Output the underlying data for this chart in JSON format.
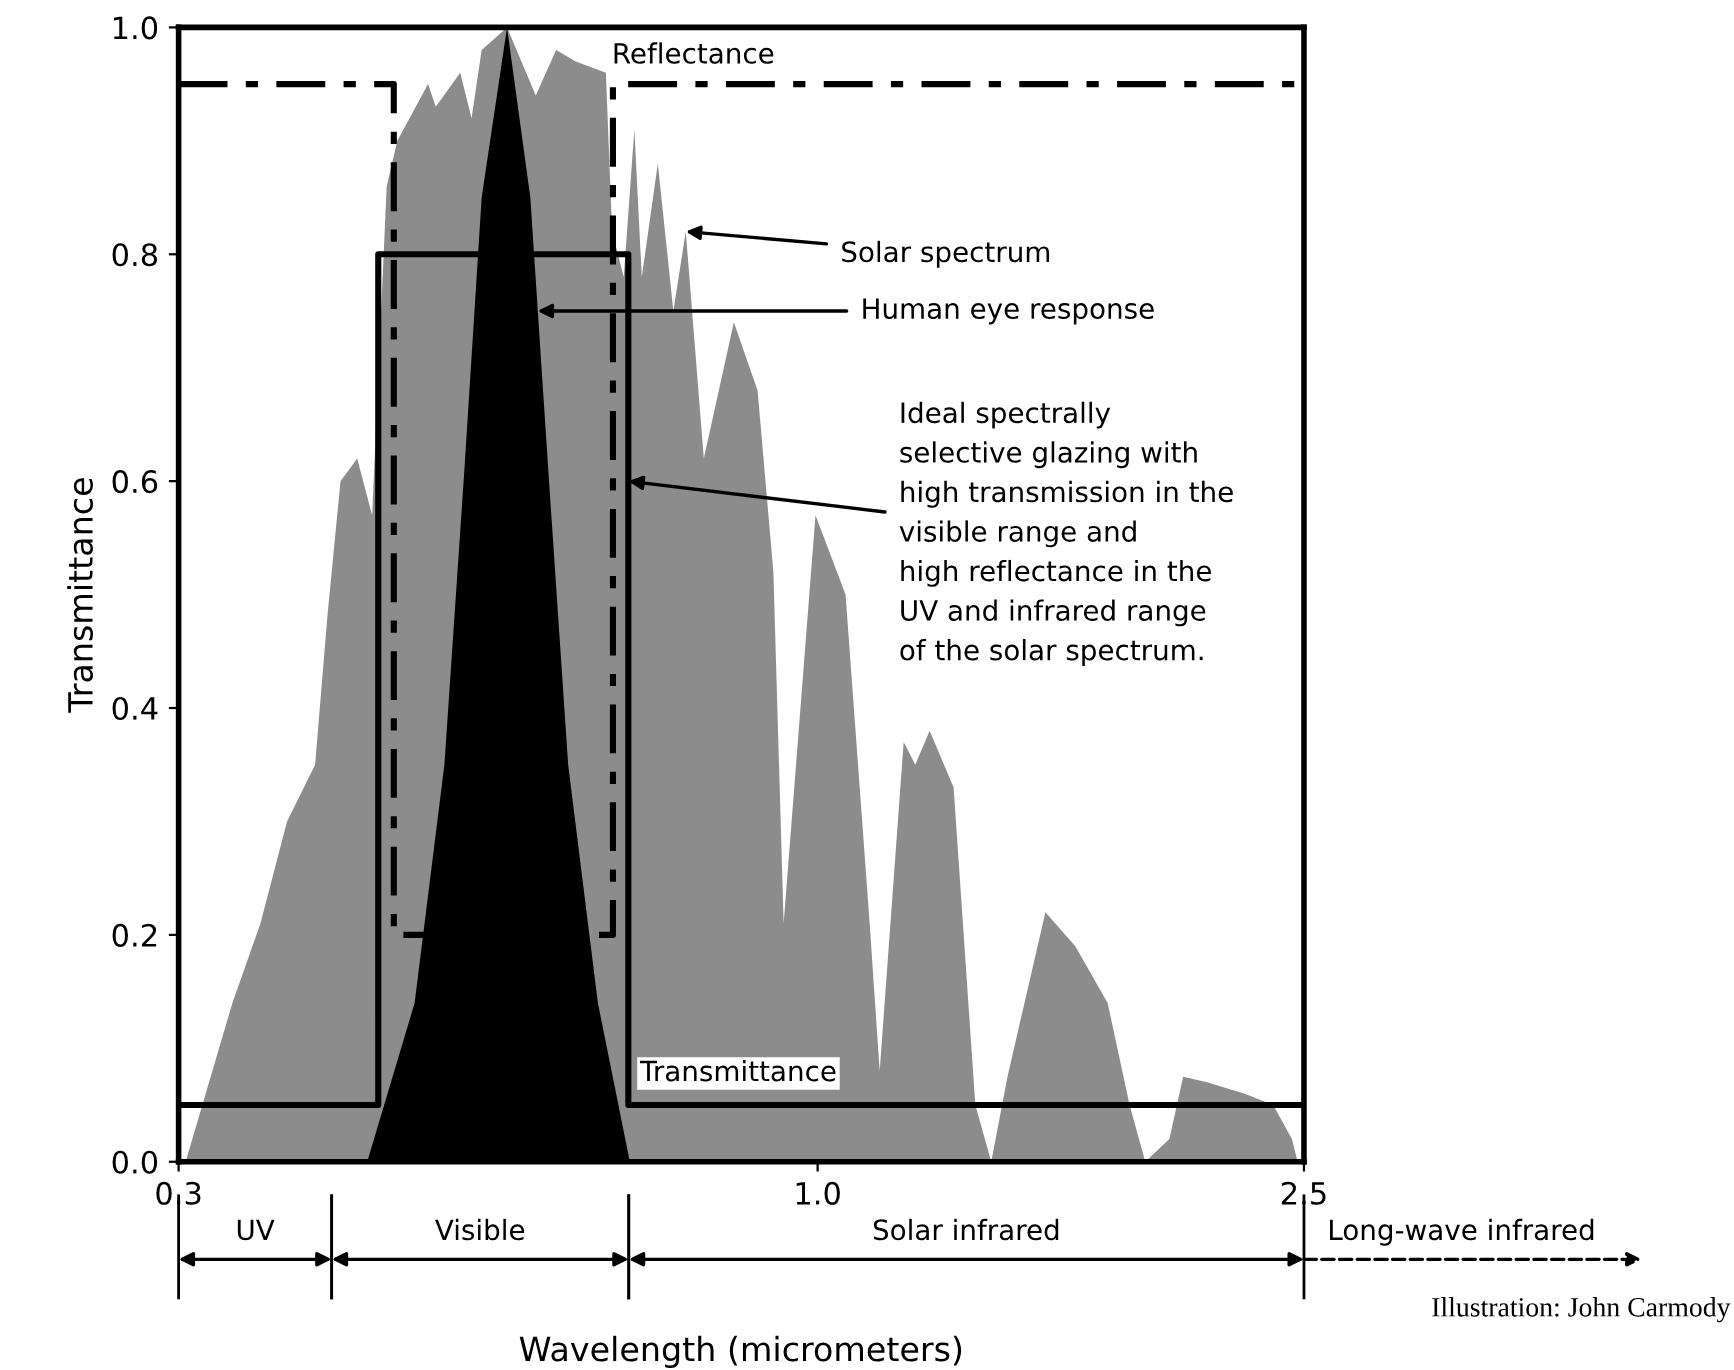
{
  "chart_data": {
    "type": "area",
    "xlabel": "Wavelength (micrometers)",
    "ylabel": "Transmittance",
    "log": "x",
    "xlim": [
      0.3,
      2.5
    ],
    "xticks": [
      {
        "value": 0.3,
        "label": "0.3"
      },
      {
        "value": 1.0,
        "label": "1.0"
      },
      {
        "value": 2.5,
        "label": "2.5"
      }
    ],
    "ylim": [
      0,
      1.0
    ],
    "yticks": [
      {
        "value": 0,
        "label": "0.0"
      },
      {
        "value": 0.2,
        "label": "0.2"
      },
      {
        "value": 0.4,
        "label": "0.4"
      },
      {
        "value": 0.6,
        "label": "0.6"
      },
      {
        "value": 0.8,
        "label": "0.8"
      },
      {
        "value": 1.0,
        "label": "1.0"
      }
    ],
    "grid": false,
    "series": [
      {
        "type": "area",
        "color": "#8c8c8c",
        "x": [
          0.304,
          0.332,
          0.35,
          0.368,
          0.388,
          0.397,
          0.407,
          0.42,
          0.432,
          0.444,
          0.453,
          0.48,
          0.487,
          0.51,
          0.521,
          0.531,
          0.557,
          0.588,
          0.611,
          0.634,
          0.671,
          0.679,
          0.694,
          0.708,
          0.718,
          0.74,
          0.762,
          0.78,
          0.807,
          0.854,
          0.893,
          0.92,
          0.938,
          0.996,
          1.054,
          1.103,
          1.124,
          1.176,
          1.202,
          1.235,
          1.292,
          1.346,
          1.387,
          1.43,
          1.536,
          1.625,
          1.727,
          1.8,
          1.854,
          1.94,
          1.991,
          2.083,
          2.236,
          2.359,
          2.444,
          2.47
        ],
        "values": [
          0,
          0.14,
          0.21,
          0.3,
          0.35,
          0.48,
          0.6,
          0.62,
          0.57,
          0.86,
          0.9,
          0.95,
          0.93,
          0.96,
          0.92,
          0.98,
          1.0,
          0.94,
          0.98,
          0.97,
          0.96,
          0.82,
          0.78,
          0.91,
          0.78,
          0.88,
          0.75,
          0.82,
          0.62,
          0.74,
          0.68,
          0.52,
          0.21,
          0.57,
          0.5,
          0.21,
          0.08,
          0.37,
          0.35,
          0.38,
          0.33,
          0.05,
          0,
          0.075,
          0.22,
          0.19,
          0.14,
          0.05,
          0,
          0.02,
          0.075,
          0.07,
          0.06,
          0.05,
          0.02,
          0
        ]
      },
      {
        "type": "area",
        "color": "#000000",
        "x": [
          0.428,
          0.468,
          0.495,
          0.514,
          0.531,
          0.557,
          0.582,
          0.602,
          0.625,
          0.661,
          0.702
        ],
        "values": [
          0,
          0.14,
          0.35,
          0.61,
          0.85,
          1.0,
          0.85,
          0.61,
          0.35,
          0.14,
          0
        ]
      },
      {
        "type": "line",
        "color": "#000000",
        "line_style": "solid",
        "x": [
          0.3,
          0.437,
          0.437,
          0.7,
          0.7,
          2.5
        ],
        "values": [
          0.05,
          0.05,
          0.8,
          0.8,
          0.05,
          0.05
        ]
      },
      {
        "type": "line",
        "color": "#000000",
        "line_style": "dashdot",
        "x": [
          0.3,
          0.45,
          0.45,
          0.68,
          0.68,
          2.5
        ],
        "values": [
          0.95,
          0.95,
          0.2,
          0.2,
          0.95,
          0.95
        ]
      }
    ],
    "annotations": [
      "Reflectance",
      "Transmittance",
      "UV",
      "Visible",
      "Solar infrared",
      {
        "text": "Solar spectrum",
        "x": 0.78,
        "y": 0.82
      },
      {
        "text": "Human eye response",
        "x": 0.59,
        "y": 0.75
      },
      {
        "text": "Ideal spectrally\nselective glazing with\nhigh transmission in the\nvisible range and\nhigh reflectance in the\nUV and infrared range\nof the solar spectrum.",
        "x": 0.7,
        "y": 0.6
      },
      "Long-wave infrared",
      "Illustration: John Carmody"
    ]
  }
}
